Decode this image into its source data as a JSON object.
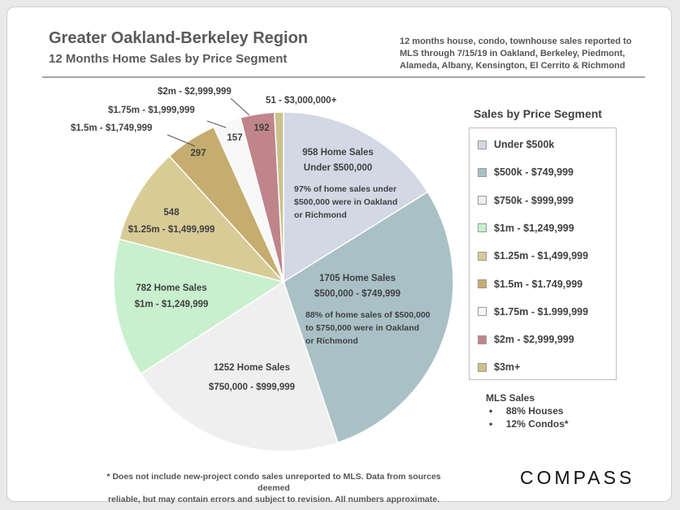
{
  "header": {
    "title": "Greater Oakland-Berkeley Region",
    "subtitle": "12 Months  Home Sales by Price Segment",
    "note_lines": [
      "12 months house, condo, townhouse sales reported to",
      "MLS through 7/15/19  in Oakland, Berkeley, Piedmont,",
      "Alameda, Albany, Kensington, El Cerrito & Richmond"
    ]
  },
  "chart_data": {
    "type": "pie",
    "start_angle_deg": 0,
    "direction": "clockwise",
    "slices": [
      {
        "key": "under500",
        "value": 958,
        "color": "#d2d8e4",
        "legend": "Under $500k",
        "lines": [
          "958 Home Sales",
          "Under $500,000"
        ],
        "note": [
          "97% of home sales under",
          "$500,000  were in Oakland",
          "or Richmond"
        ]
      },
      {
        "key": "500to750",
        "value": 1705,
        "color": "#a9c1c6",
        "legend": "$500k - $749,999",
        "lines": [
          "1705 Home Sales",
          "$500,000 - $749,999"
        ],
        "note": [
          "88% of home sales of $500,000",
          "to $750,000  were in Oakland",
          "or Richmond"
        ]
      },
      {
        "key": "750to1m",
        "value": 1252,
        "color": "#efefef",
        "legend": "$750k - $999,999",
        "lines": [
          "1252 Home Sales",
          "$750,000 - $999,999"
        ]
      },
      {
        "key": "1mto125",
        "value": 782,
        "color": "#c8f0cd",
        "legend": "$1m - $1,249,999",
        "lines": [
          "782 Home Sales",
          "$1m - $1,249,999"
        ]
      },
      {
        "key": "125to15",
        "value": 548,
        "color": "#d8cc96",
        "legend": "$1.25m - $1,499,999",
        "lines": [
          "548",
          "$1.25m - $1,499,999"
        ]
      },
      {
        "key": "15to175",
        "value": 297,
        "color": "#c5ad6f",
        "legend": "$1.5m - $1.749,999",
        "lines": [
          "297"
        ],
        "callout": "$1.5m - $1,749,999"
      },
      {
        "key": "175to2",
        "value": 157,
        "color": "#f8f8f8",
        "legend": "$1.75m - $1.999,999",
        "lines": [
          "157"
        ],
        "callout": "$1.75m - $1,999,999"
      },
      {
        "key": "2to3",
        "value": 192,
        "color": "#c0858a",
        "legend": "$2m - $2,999,999",
        "lines": [
          "192"
        ],
        "callout": "$2m - $2,999,999"
      },
      {
        "key": "3mplus",
        "value": 51,
        "color": "#ccc18c",
        "legend": "$3m+",
        "callout": "51 - $3,000,000+"
      }
    ]
  },
  "legend": {
    "title": "Sales by Price Segment"
  },
  "mls": {
    "title": "MLS Sales",
    "items": [
      "88% Houses",
      "12% Condos*"
    ]
  },
  "footnote": {
    "line1": "* Does not include new-project condo sales unreported to MLS. Data from sources deemed",
    "line2": "reliable,  but may contain errors and subject to revision. All numbers approximate."
  },
  "logo": "COMPASS"
}
